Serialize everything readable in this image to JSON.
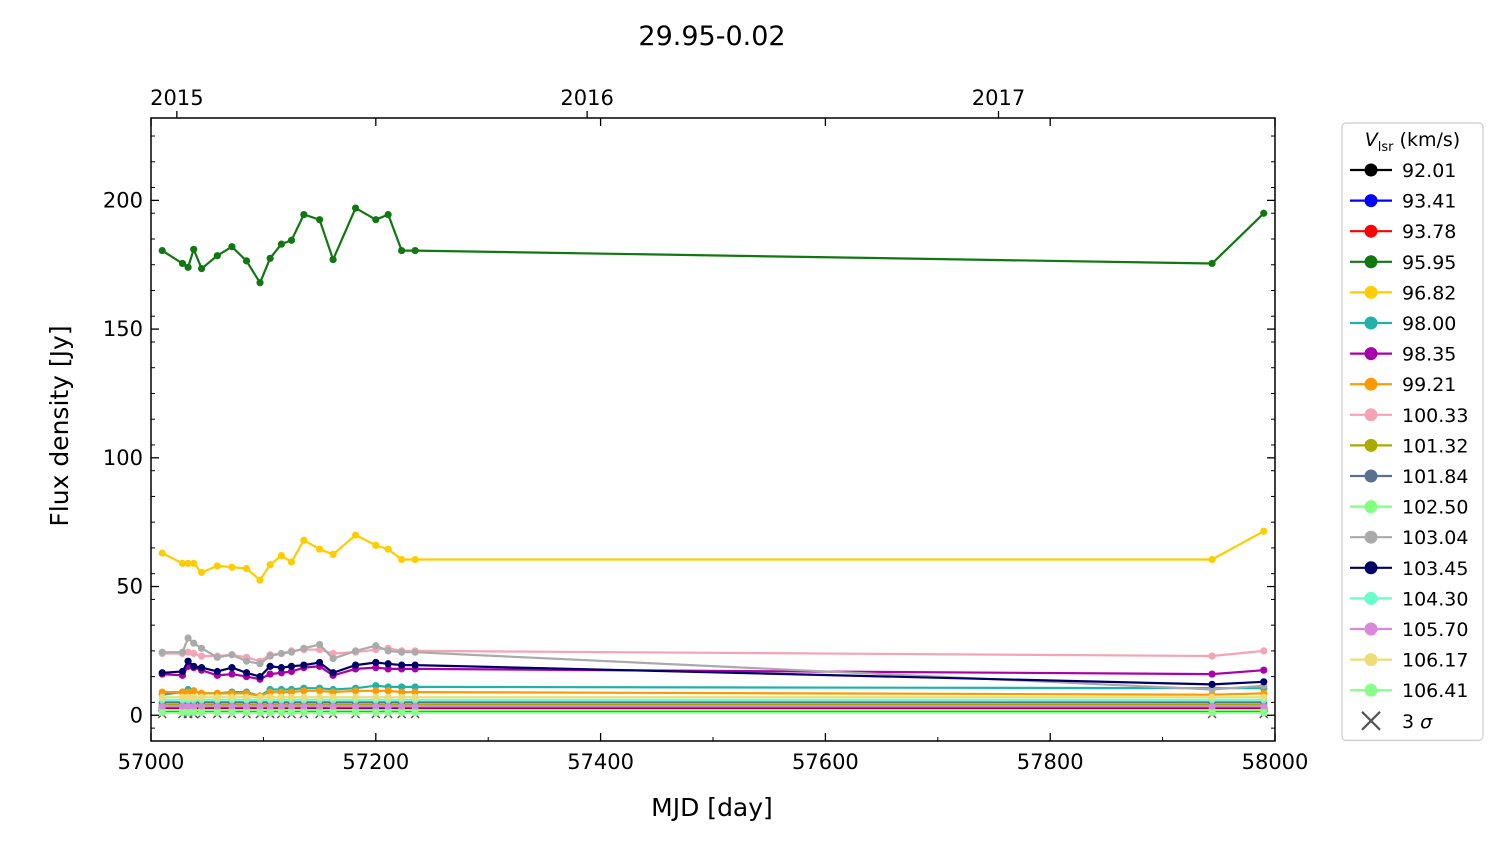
{
  "chart_data": {
    "type": "line",
    "title": "29.95-0.02",
    "xlabel": "MJD [day]",
    "ylabel": "Flux density [Jy]",
    "xlim": [
      57000,
      58000
    ],
    "ylim": [
      -10,
      232
    ],
    "xticks": [
      57000,
      57200,
      57400,
      57600,
      57800,
      58000
    ],
    "xtick_labels": [
      "57000",
      "57200",
      "57400",
      "57600",
      "57800",
      "58000"
    ],
    "yticks": [
      0,
      50,
      100,
      150,
      200
    ],
    "ytick_labels": [
      "0",
      "50",
      "100",
      "150",
      "200"
    ],
    "top_axis": {
      "ticks": [
        57023,
        57388,
        57754
      ],
      "labels": [
        "2015",
        "2016",
        "2017"
      ]
    },
    "grid": false,
    "legend": {
      "title": "V_lsr (km/s)",
      "title_main": "V",
      "title_sub": "lsr",
      "title_rest": " (km/s)",
      "placement": "outside-right",
      "upper_limit_label": "3 σ"
    },
    "x": [
      57010,
      57028,
      57033,
      57038,
      57045,
      57059,
      57072,
      57085,
      57097,
      57106,
      57116,
      57125,
      57136,
      57150,
      57162,
      57182,
      57200,
      57211,
      57223,
      57235,
      57944,
      57990
    ],
    "series": [
      {
        "name": "92.01",
        "color": "#000000",
        "values": [
          1.5,
          1.5,
          1.5,
          1.5,
          1.5,
          1.5,
          1.5,
          1.5,
          1.5,
          1.5,
          1.5,
          1.5,
          1.5,
          1.5,
          1.5,
          1.5,
          1.5,
          1.5,
          1.5,
          1.5,
          1.5,
          1.5
        ]
      },
      {
        "name": "93.41",
        "color": "#0000ff",
        "values": [
          2.5,
          2.5,
          2.5,
          2.6,
          2.5,
          2.5,
          2.5,
          2.5,
          2.5,
          2.4,
          2.5,
          2.5,
          2.5,
          2.6,
          2.5,
          2.5,
          2.6,
          2.6,
          2.5,
          2.5,
          2.5,
          2.5
        ]
      },
      {
        "name": "93.78",
        "color": "#ff0000",
        "values": [
          3,
          3,
          3,
          3.2,
          3,
          3,
          3,
          3,
          3,
          2.9,
          3,
          3,
          3,
          3.1,
          3,
          3,
          3.1,
          3.1,
          3,
          3,
          3,
          3
        ]
      },
      {
        "name": "95.95",
        "color": "#117711",
        "values": [
          180.5,
          175.5,
          174,
          181,
          173.5,
          178.5,
          182,
          176.5,
          168,
          177.5,
          183,
          184.5,
          194.5,
          192.5,
          177,
          197,
          192.5,
          194.5,
          180.5,
          180.5,
          175.5,
          195
        ]
      },
      {
        "name": "96.82",
        "color": "#ffcc00",
        "values": [
          63,
          59,
          59,
          59,
          55.5,
          58,
          57.5,
          57,
          52.5,
          58.5,
          62,
          59.5,
          68,
          64.5,
          62.5,
          70,
          66,
          64.5,
          60.5,
          60.5,
          60.5,
          71.5
        ]
      },
      {
        "name": "98.00",
        "color": "#20b2aa",
        "values": [
          8,
          9,
          10,
          9.5,
          8.5,
          8.5,
          9,
          9,
          7.5,
          10,
          10,
          10,
          10.5,
          10.5,
          10,
          10.5,
          11.5,
          11,
          11,
          11,
          10.5,
          10.5
        ]
      },
      {
        "name": "98.35",
        "color": "#aa00aa",
        "values": [
          16,
          15.5,
          19,
          18.5,
          17.5,
          15.5,
          16,
          15,
          14,
          16,
          16.5,
          17,
          18.5,
          19,
          15.5,
          18,
          18.5,
          18,
          18,
          18,
          16,
          17.5
        ]
      },
      {
        "name": "99.21",
        "color": "#ff9900",
        "values": [
          9,
          9,
          9,
          9.5,
          8.5,
          8.5,
          8.5,
          8.5,
          7.5,
          9,
          9,
          9,
          9.5,
          9.5,
          9,
          9.5,
          9.5,
          9.5,
          9,
          9,
          8,
          8.5
        ]
      },
      {
        "name": "100.33",
        "color": "#f4a4b4",
        "values": [
          24,
          24,
          24.5,
          24,
          23,
          23,
          23.5,
          22.5,
          21,
          23.5,
          24,
          25,
          25.5,
          25.5,
          24,
          24.5,
          25.5,
          26,
          25,
          25,
          23,
          25
        ]
      },
      {
        "name": "101.32",
        "color": "#aaaa00",
        "values": [
          4,
          4,
          4,
          4,
          4,
          4,
          4,
          4,
          4,
          4,
          4,
          4,
          4,
          4,
          4,
          4,
          4,
          4,
          4,
          4,
          4,
          4
        ]
      },
      {
        "name": "101.84",
        "color": "#5a7090",
        "values": [
          5,
          5,
          5,
          5,
          5,
          5,
          5,
          5,
          5,
          5,
          5,
          5,
          5,
          5,
          5,
          5,
          5,
          5,
          5,
          5,
          5,
          5
        ]
      },
      {
        "name": "102.50",
        "color": "#80ff80",
        "values": [
          2,
          2,
          2,
          2,
          2,
          2,
          2,
          2,
          2,
          2,
          2,
          2,
          2,
          2,
          2,
          2,
          2,
          2,
          2,
          2,
          2,
          2
        ]
      },
      {
        "name": "103.04",
        "color": "#aaaaaa",
        "values": [
          24.5,
          24.5,
          30,
          28,
          26,
          22.5,
          23.5,
          21,
          20,
          23,
          24,
          24.5,
          26,
          27.5,
          22,
          25,
          27,
          25,
          24.5,
          24.5,
          10,
          11.5
        ]
      },
      {
        "name": "103.45",
        "color": "#000066",
        "values": [
          16.5,
          17,
          21,
          19,
          18.5,
          17,
          18.5,
          16.5,
          15,
          19,
          18.5,
          19,
          19.5,
          20.5,
          16.5,
          19.5,
          20.5,
          20,
          19.5,
          19.5,
          12,
          13
        ]
      },
      {
        "name": "104.30",
        "color": "#66ffcc",
        "values": [
          6,
          6,
          6,
          6,
          6,
          6,
          6,
          6,
          6,
          6,
          6,
          6,
          6,
          6,
          6,
          6,
          6,
          6,
          6,
          6,
          6,
          6
        ]
      },
      {
        "name": "105.70",
        "color": "#d88ad8",
        "values": [
          3.5,
          3.5,
          3.5,
          3.5,
          3.5,
          3.5,
          3.5,
          3.5,
          3.5,
          3.5,
          3.5,
          3.5,
          3.5,
          3.5,
          3.5,
          3.5,
          3.5,
          3.5,
          3.5,
          3.5,
          3.5,
          3.5
        ]
      },
      {
        "name": "106.17",
        "color": "#eedd77",
        "values": [
          7,
          7,
          7,
          7,
          7,
          7,
          7,
          7,
          7,
          7,
          7,
          7,
          7,
          7,
          7,
          7,
          7,
          7,
          7,
          7,
          7,
          7
        ]
      },
      {
        "name": "106.41",
        "color": "#88ff88",
        "values": [
          1,
          1,
          1,
          1,
          1,
          1,
          1,
          1,
          1,
          1,
          1,
          1,
          1,
          1,
          1,
          1,
          1,
          1,
          1,
          1,
          1,
          1
        ]
      }
    ],
    "upper_limits": {
      "name": "3 σ",
      "color": "#555555",
      "value": 0.5
    }
  }
}
